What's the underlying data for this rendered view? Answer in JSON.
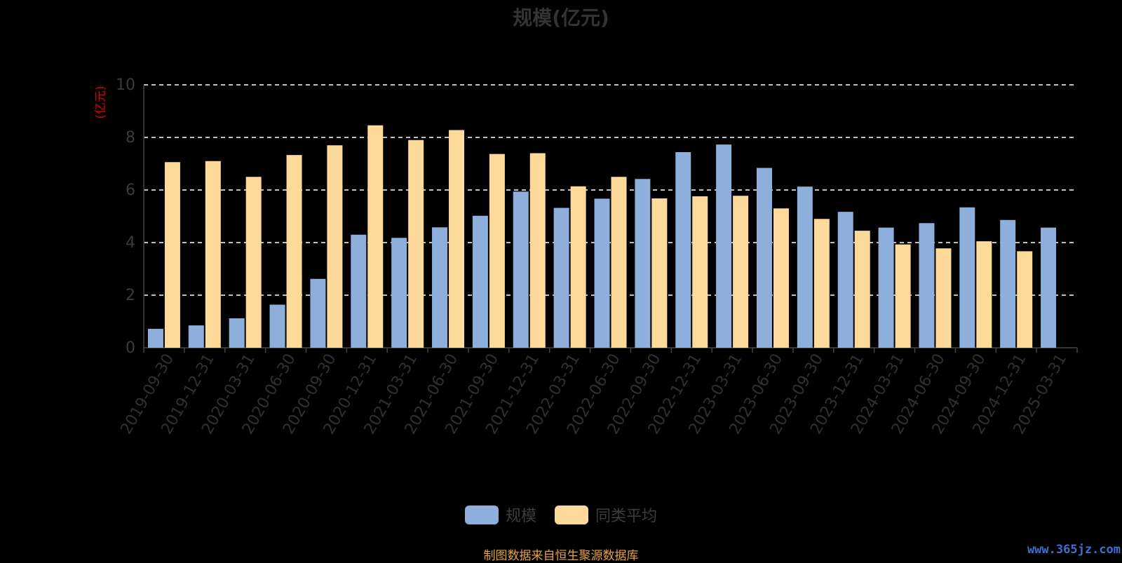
{
  "title": "规模(亿元)",
  "source_note": "制图数据来自恒生聚源数据库",
  "watermark": "www.365jz.com",
  "colors": {
    "scale": "#8eaedc",
    "average": "#fdd99a",
    "grid": "#ffffff",
    "ylabel": "#e00000"
  },
  "legend": [
    {
      "label": "规模",
      "color": "#8eaedc"
    },
    {
      "label": "同类平均",
      "color": "#fdd99a"
    }
  ],
  "chart_data": {
    "type": "bar",
    "title": "规模(亿元)",
    "ylabel": "(亿元)",
    "xlabel": "",
    "ylim": [
      0,
      10
    ],
    "yticks": [
      0,
      2,
      4,
      6,
      8,
      10
    ],
    "grid": true,
    "legend_position": "bottom",
    "categories": [
      "2019-09-30",
      "2019-12-31",
      "2020-03-31",
      "2020-06-30",
      "2020-09-30",
      "2020-12-31",
      "2021-03-31",
      "2021-06-30",
      "2021-09-30",
      "2021-12-31",
      "2022-03-31",
      "2022-06-30",
      "2022-09-30",
      "2022-12-31",
      "2023-03-31",
      "2023-06-30",
      "2023-09-30",
      "2023-12-31",
      "2024-03-31",
      "2024-06-30",
      "2024-09-30",
      "2024-12-31",
      "2025-03-31"
    ],
    "series": [
      {
        "name": "规模",
        "values": [
          0.72,
          0.85,
          1.12,
          1.64,
          2.62,
          4.3,
          4.18,
          4.58,
          5.02,
          5.94,
          5.32,
          5.67,
          6.42,
          7.44,
          7.73,
          6.84,
          6.13,
          5.17,
          4.57,
          4.74,
          5.34,
          4.86,
          4.57
        ]
      },
      {
        "name": "同类平均",
        "values": [
          7.06,
          7.1,
          6.5,
          7.33,
          7.7,
          8.46,
          7.9,
          8.28,
          7.37,
          7.4,
          6.14,
          6.5,
          5.68,
          5.76,
          5.78,
          5.3,
          4.9,
          4.45,
          3.93,
          3.78,
          4.05,
          3.67,
          null
        ]
      }
    ]
  }
}
